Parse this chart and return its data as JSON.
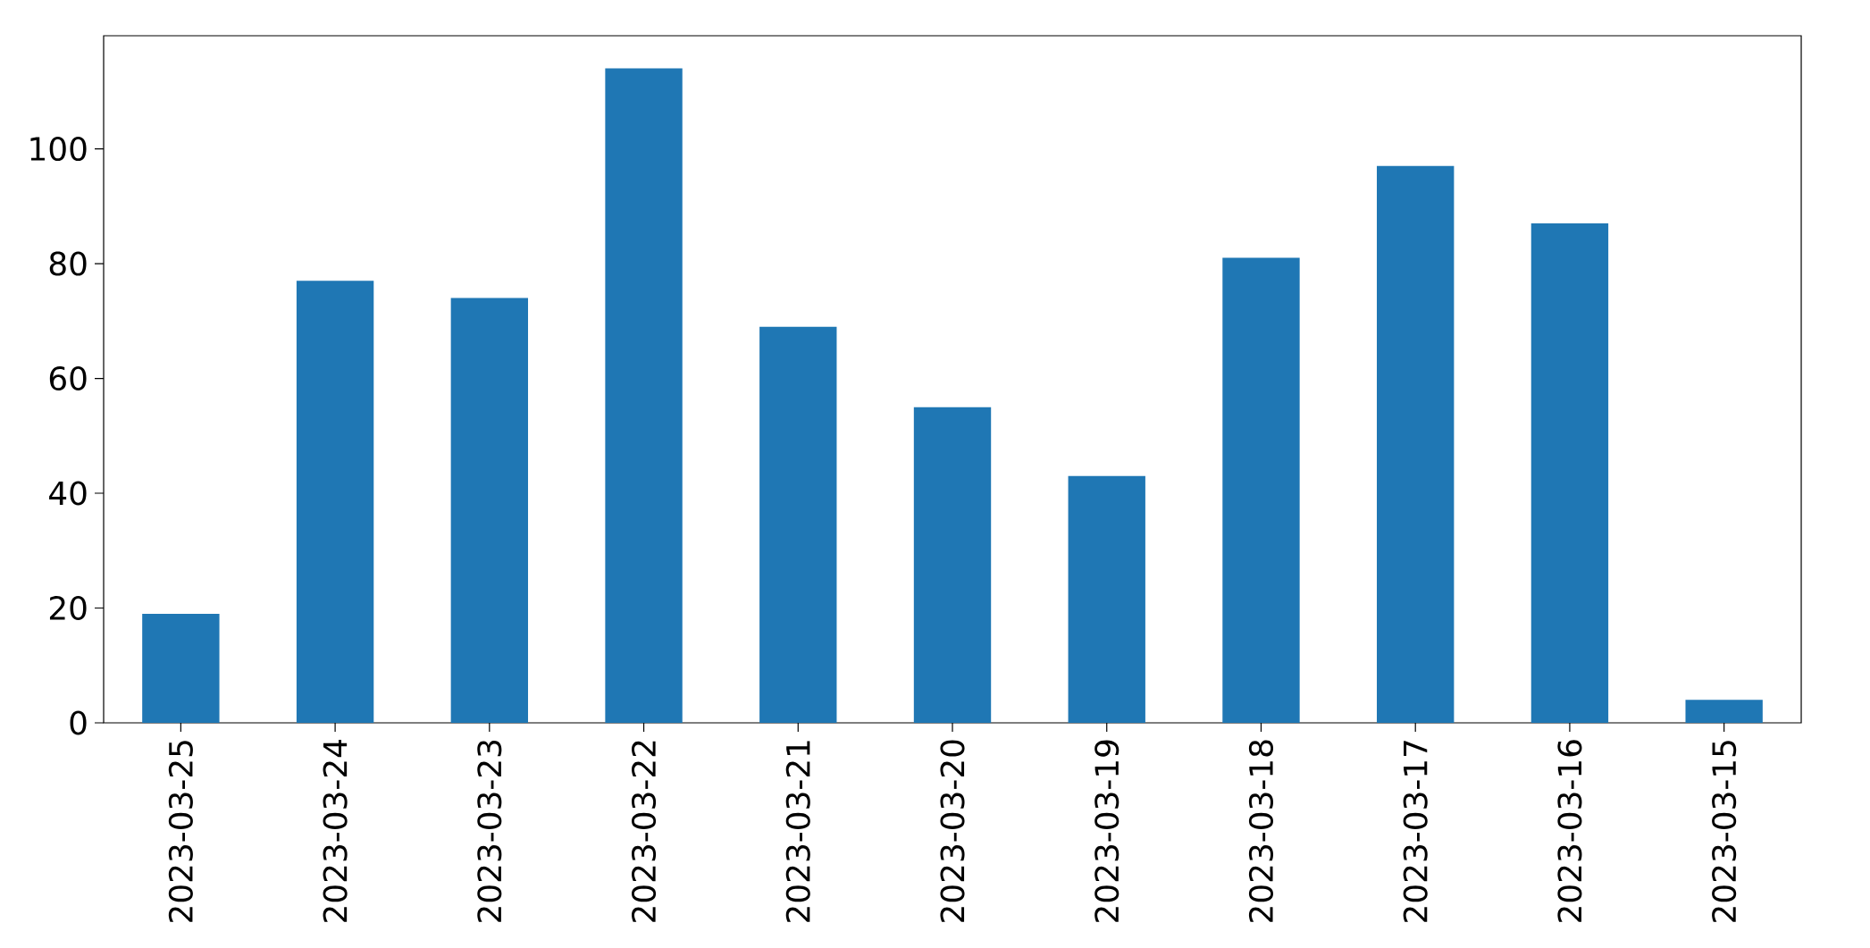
{
  "chart_data": {
    "type": "bar",
    "categories": [
      "2023-03-25",
      "2023-03-24",
      "2023-03-23",
      "2023-03-22",
      "2023-03-21",
      "2023-03-20",
      "2023-03-19",
      "2023-03-18",
      "2023-03-17",
      "2023-03-16",
      "2023-03-15"
    ],
    "values": [
      19,
      77,
      74,
      114,
      69,
      55,
      43,
      81,
      97,
      87,
      4
    ],
    "color": "#1f77b4",
    "ylim": [
      0,
      119.7
    ],
    "yticks": [
      0,
      20,
      40,
      60,
      80,
      100
    ]
  }
}
